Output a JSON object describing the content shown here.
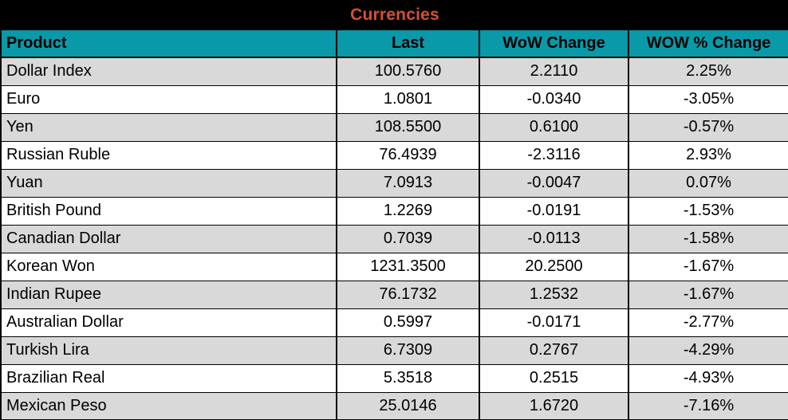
{
  "title": "Currencies",
  "colors": {
    "title_bg": "#000000",
    "title_text": "#D8502F",
    "header_bg": "#0999A8",
    "header_text": "#000000",
    "row_alt_bg": "#D9D9D9",
    "row_bg": "#FFFFFF",
    "border": "#000000"
  },
  "table": {
    "columns": [
      "Product",
      "Last",
      "WoW Change",
      "WOW % Change"
    ],
    "row_keys": [
      "product",
      "last",
      "wow_change",
      "wow_pct_change"
    ],
    "rows": [
      {
        "product": "Dollar Index",
        "last": "100.5760",
        "wow_change": "2.2110",
        "wow_pct_change": "2.25%"
      },
      {
        "product": "Euro",
        "last": "1.0801",
        "wow_change": "-0.0340",
        "wow_pct_change": "-3.05%"
      },
      {
        "product": "Yen",
        "last": "108.5500",
        "wow_change": "0.6100",
        "wow_pct_change": "-0.57%"
      },
      {
        "product": "Russian Ruble",
        "last": "76.4939",
        "wow_change": "-2.3116",
        "wow_pct_change": "2.93%"
      },
      {
        "product": "Yuan",
        "last": "7.0913",
        "wow_change": "-0.0047",
        "wow_pct_change": "0.07%"
      },
      {
        "product": "British Pound",
        "last": "1.2269",
        "wow_change": "-0.0191",
        "wow_pct_change": "-1.53%"
      },
      {
        "product": "Canadian Dollar",
        "last": "0.7039",
        "wow_change": "-0.0113",
        "wow_pct_change": "-1.58%"
      },
      {
        "product": "Korean Won",
        "last": "1231.3500",
        "wow_change": "20.2500",
        "wow_pct_change": "-1.67%"
      },
      {
        "product": "Indian Rupee",
        "last": "76.1732",
        "wow_change": "1.2532",
        "wow_pct_change": "-1.67%"
      },
      {
        "product": "Australian Dollar",
        "last": "0.5997",
        "wow_change": "-0.0171",
        "wow_pct_change": "-2.77%"
      },
      {
        "product": "Turkish Lira",
        "last": "6.7309",
        "wow_change": "0.2767",
        "wow_pct_change": "-4.29%"
      },
      {
        "product": "Brazilian Real",
        "last": "5.3518",
        "wow_change": "0.2515",
        "wow_pct_change": "-4.93%"
      },
      {
        "product": "Mexican Peso",
        "last": "25.0146",
        "wow_change": "1.6720",
        "wow_pct_change": "-7.16%"
      }
    ]
  }
}
